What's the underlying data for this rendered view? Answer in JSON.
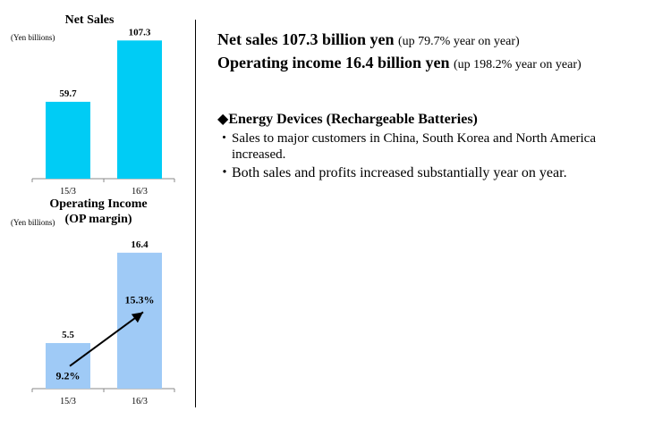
{
  "colors": {
    "net_sales_bar": "#00ccf5",
    "op_income_bar": "#9fcaf6",
    "axis": "#888888"
  },
  "charts": {
    "net_sales": {
      "title": "Net Sales",
      "unit": "(Yen billions)"
    },
    "operating_income": {
      "title_line1": "Operating Income",
      "title_line2": "(OP margin)",
      "unit": "(Yen billions)",
      "margin_labels": [
        "9.2%",
        "15.3%"
      ]
    }
  },
  "chart_data": [
    {
      "type": "bar",
      "title": "Net Sales",
      "ylabel": "(Yen billions)",
      "categories": [
        "15/3",
        "16/3"
      ],
      "values": [
        59.7,
        107.3
      ],
      "value_labels": [
        "59.7",
        "107.3"
      ],
      "ylim": [
        0,
        120
      ]
    },
    {
      "type": "bar",
      "title": "Operating Income (OP margin)",
      "ylabel": "(Yen billions)",
      "categories": [
        "15/3",
        "16/3"
      ],
      "values": [
        5.5,
        16.4
      ],
      "value_labels": [
        "5.5",
        "16.4"
      ],
      "op_margin_percent": [
        9.2,
        15.3
      ],
      "ylim": [
        0,
        18
      ]
    }
  ],
  "summary": {
    "net_sales_main": "Net sales 107.3 billion yen",
    "net_sales_sub": "(up 79.7% year on year)",
    "op_income_main": "Operating income 16.4 billion yen",
    "op_income_sub": "(up 198.2% year on year)"
  },
  "section": {
    "marker": "◆",
    "title": "Energy Devices (Rechargeable Batteries)",
    "bullets": [
      {
        "line1": "Sales to major customers in China, South Korea and North America",
        "line2": "increased."
      },
      {
        "line1": "Both sales and profits increased substantially year on year."
      }
    ],
    "bullet_char": "・"
  }
}
